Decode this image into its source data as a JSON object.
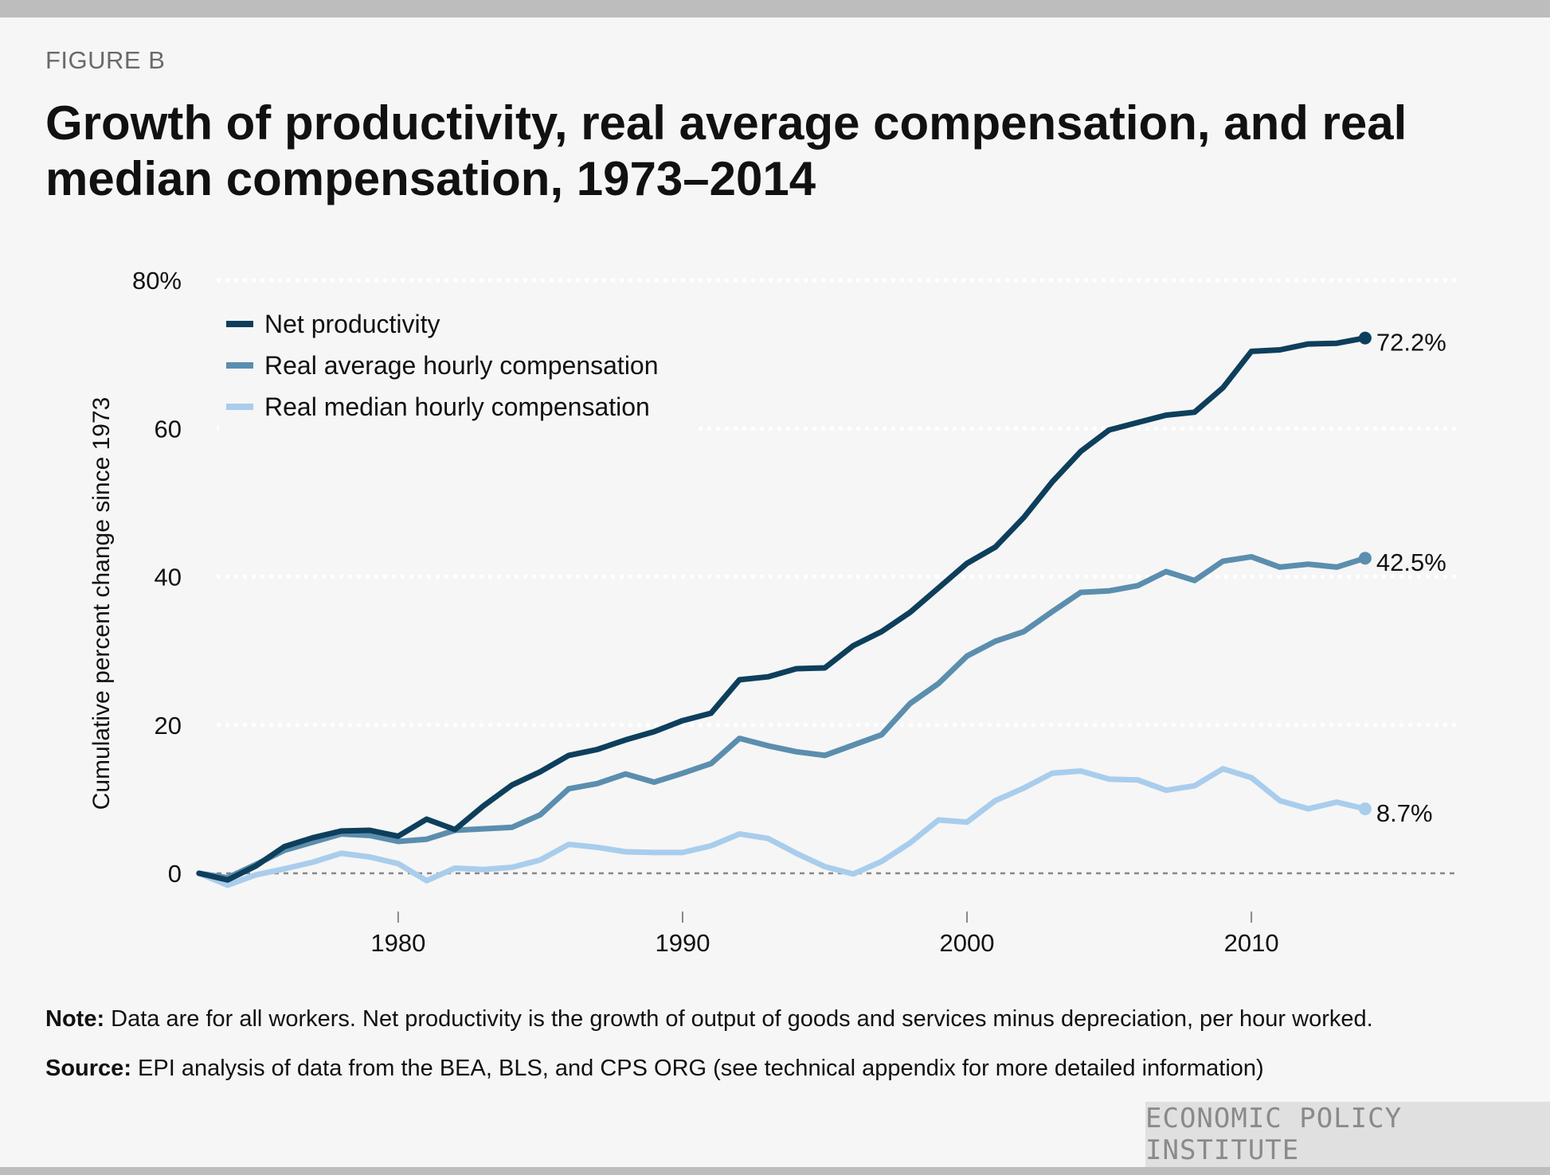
{
  "figure_label": "FIGURE B",
  "title": "Growth of productivity, real average compensation, and real median compensation, 1973–2014",
  "note_label": "Note:",
  "note_text": " Data are for all workers. Net productivity is the growth of output of goods and services minus depreciation, per hour worked.",
  "source_label": "Source:",
  "source_text": " EPI analysis of data from the BEA, BLS, and CPS ORG (see technical appendix for more detailed information)",
  "brand": "ECONOMIC POLICY INSTITUTE",
  "colors": {
    "net_productivity": "#0d3f5c",
    "real_average": "#5b8eae",
    "real_median": "#a9cdec",
    "grid": "#ffffff",
    "zero_line": "#888888"
  },
  "chart_data": {
    "type": "line",
    "title": "",
    "xlabel": "",
    "ylabel": "Cumulative percent change since 1973",
    "xlim": [
      1966,
      2020.5
    ],
    "ylim": [
      -8,
      80
    ],
    "x_ticks": [
      1980,
      1990,
      2000,
      2010
    ],
    "x_tick_labels": [
      "1980",
      "1990",
      "2000",
      "2010"
    ],
    "y_ticks": [
      0,
      20,
      40,
      60,
      80
    ],
    "y_tick_labels": [
      "0",
      "20",
      "40",
      "60",
      "80%"
    ],
    "grid": "horizontal dotted",
    "legend_position": "top-left",
    "x": [
      1973,
      1974,
      1975,
      1976,
      1977,
      1978,
      1979,
      1980,
      1981,
      1982,
      1983,
      1984,
      1985,
      1986,
      1987,
      1988,
      1989,
      1990,
      1991,
      1992,
      1993,
      1994,
      1995,
      1996,
      1997,
      1998,
      1999,
      2000,
      2001,
      2002,
      2003,
      2004,
      2005,
      2006,
      2007,
      2008,
      2009,
      2010,
      2011,
      2012,
      2013,
      2014
    ],
    "series": [
      {
        "name": "Net productivity",
        "color_key": "net_productivity",
        "end_label": "72.2%",
        "values": [
          0,
          -0.9,
          1.0,
          3.6,
          4.8,
          5.7,
          5.8,
          5.0,
          7.3,
          5.9,
          9.1,
          11.9,
          13.7,
          15.9,
          16.7,
          18.0,
          19.1,
          20.6,
          21.6,
          26.1,
          26.5,
          27.6,
          27.7,
          30.7,
          32.6,
          35.2,
          38.5,
          41.8,
          44.0,
          48.0,
          52.8,
          56.9,
          59.8,
          60.8,
          61.8,
          62.2,
          65.5,
          70.4,
          70.6,
          71.4,
          71.5,
          72.2
        ]
      },
      {
        "name": "Real average hourly compensation",
        "color_key": "real_average",
        "end_label": "42.5%",
        "values": [
          0,
          -0.6,
          1.2,
          3.1,
          4.2,
          5.3,
          5.1,
          4.3,
          4.6,
          5.8,
          6.0,
          6.2,
          7.9,
          11.4,
          12.1,
          13.4,
          12.3,
          13.5,
          14.8,
          18.2,
          17.2,
          16.4,
          15.9,
          17.3,
          18.7,
          22.9,
          25.6,
          29.3,
          31.3,
          32.6,
          35.3,
          37.9,
          38.1,
          38.8,
          40.7,
          39.5,
          42.1,
          42.7,
          41.3,
          41.7,
          41.3,
          42.5
        ]
      },
      {
        "name": "Real median hourly compensation",
        "color_key": "real_median",
        "end_label": "8.7%",
        "values": [
          0,
          -1.6,
          -0.2,
          0.6,
          1.5,
          2.7,
          2.2,
          1.3,
          -1.0,
          0.7,
          0.5,
          0.8,
          1.8,
          3.9,
          3.5,
          2.9,
          2.8,
          2.8,
          3.7,
          5.3,
          4.7,
          2.7,
          0.9,
          -0.1,
          1.6,
          4.1,
          7.2,
          6.9,
          9.8,
          11.5,
          13.5,
          13.8,
          12.7,
          12.6,
          11.2,
          11.8,
          14.1,
          12.9,
          9.8,
          8.7,
          9.6,
          8.7
        ]
      }
    ]
  }
}
